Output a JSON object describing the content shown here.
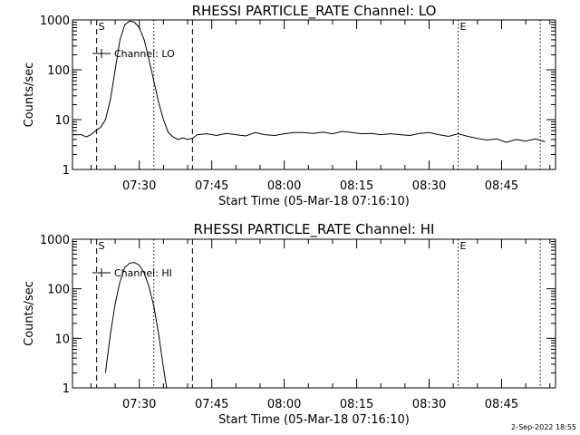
{
  "footer": {
    "timestamp": "2-Sep-2022 18:55"
  },
  "chart_data": [
    {
      "type": "line",
      "title": "RHESSI PARTICLE_RATE Channel: LO",
      "xlabel": "Start Time (05-Mar-18 07:16:10)",
      "ylabel": "Counts/sec",
      "y_scale": "log",
      "ylim": [
        1,
        1000
      ],
      "xlim": [
        "07:16:10",
        "08:56:10"
      ],
      "x_ticks": [
        "07:30",
        "07:45",
        "08:00",
        "08:15",
        "08:30",
        "08:45"
      ],
      "y_ticks": [
        "1",
        "10",
        "100",
        "1000"
      ],
      "legend": {
        "placement": "top-left",
        "entry": "Channel: LO"
      },
      "markers": [
        {
          "time": "07:21:10",
          "label": "S",
          "style": "dashed"
        },
        {
          "time": "07:33:00",
          "label": "",
          "style": "dotted"
        },
        {
          "time": "07:41:00",
          "label": "",
          "style": "dashed"
        },
        {
          "time": "08:36:00",
          "label": "E",
          "style": "dotted"
        },
        {
          "time": "08:53:00",
          "label": "",
          "style": "dotted"
        }
      ],
      "series": [
        {
          "x": [
            "07:16:10",
            "07:18:00",
            "07:19:00",
            "07:20:00",
            "07:21:00",
            "07:22:00",
            "07:23:00",
            "07:24:00",
            "07:25:00",
            "07:26:00",
            "07:27:00",
            "07:28:00",
            "07:29:00",
            "07:30:00",
            "07:31:00",
            "07:32:00",
            "07:33:00",
            "07:34:00",
            "07:35:00",
            "07:36:00",
            "07:37:00",
            "07:38:00",
            "07:39:00",
            "07:40:00",
            "07:41:00",
            "07:42:00",
            "07:44:00",
            "07:46:00",
            "07:48:00",
            "07:50:00",
            "07:52:00",
            "07:54:00",
            "07:56:00",
            "07:58:00",
            "08:00:00",
            "08:02:00",
            "08:04:00",
            "08:06:00",
            "08:08:00",
            "08:10:00",
            "08:12:00",
            "08:14:00",
            "08:16:00",
            "08:18:00",
            "08:20:00",
            "08:22:00",
            "08:24:00",
            "08:26:00",
            "08:28:00",
            "08:30:00",
            "08:32:00",
            "08:34:00",
            "08:36:00",
            "08:38:00",
            "08:40:00",
            "08:42:00",
            "08:44:00",
            "08:46:00",
            "08:48:00",
            "08:50:00",
            "08:52:00",
            "08:54:00"
          ],
          "values": [
            5,
            5,
            4.5,
            5,
            6,
            7,
            10,
            25,
            100,
            400,
            800,
            950,
            900,
            700,
            400,
            160,
            60,
            22,
            10,
            5.5,
            4.5,
            4,
            4.3,
            4,
            4.2,
            5,
            5.2,
            4.8,
            5.3,
            5,
            4.7,
            5.5,
            5,
            4.8,
            5.2,
            5.5,
            5.5,
            5.3,
            5.6,
            5.2,
            5.8,
            5.5,
            5.2,
            5.3,
            5,
            5.2,
            5,
            4.8,
            5.3,
            5.5,
            5,
            4.6,
            5.2,
            4.6,
            4.2,
            3.9,
            4.1,
            3.5,
            4,
            3.7,
            4.1,
            3.6
          ]
        }
      ]
    },
    {
      "type": "line",
      "title": "RHESSI PARTICLE_RATE Channel: HI",
      "xlabel": "Start Time (05-Mar-18 07:16:10)",
      "ylabel": "Counts/sec",
      "y_scale": "log",
      "ylim": [
        1,
        1000
      ],
      "xlim": [
        "07:16:10",
        "08:56:10"
      ],
      "x_ticks": [
        "07:30",
        "07:45",
        "08:00",
        "08:15",
        "08:30",
        "08:45"
      ],
      "y_ticks": [
        "1",
        "10",
        "100",
        "1000"
      ],
      "legend": {
        "placement": "top-left",
        "entry": "Channel: HI"
      },
      "markers": [
        {
          "time": "07:21:10",
          "label": "S",
          "style": "dashed"
        },
        {
          "time": "07:33:00",
          "label": "",
          "style": "dotted"
        },
        {
          "time": "07:41:00",
          "label": "",
          "style": "dashed"
        },
        {
          "time": "08:36:00",
          "label": "E",
          "style": "dotted"
        },
        {
          "time": "08:53:00",
          "label": "",
          "style": "dotted"
        }
      ],
      "series": [
        {
          "x": [
            "07:23:00",
            "07:23:30",
            "07:24:00",
            "07:25:00",
            "07:26:00",
            "07:27:00",
            "07:28:00",
            "07:29:00",
            "07:30:00",
            "07:31:00",
            "07:32:00",
            "07:33:00",
            "07:34:00",
            "07:35:00",
            "07:35:40"
          ],
          "values": [
            2,
            5,
            12,
            50,
            140,
            270,
            330,
            340,
            300,
            210,
            110,
            45,
            12,
            2.5,
            1
          ]
        }
      ]
    }
  ]
}
